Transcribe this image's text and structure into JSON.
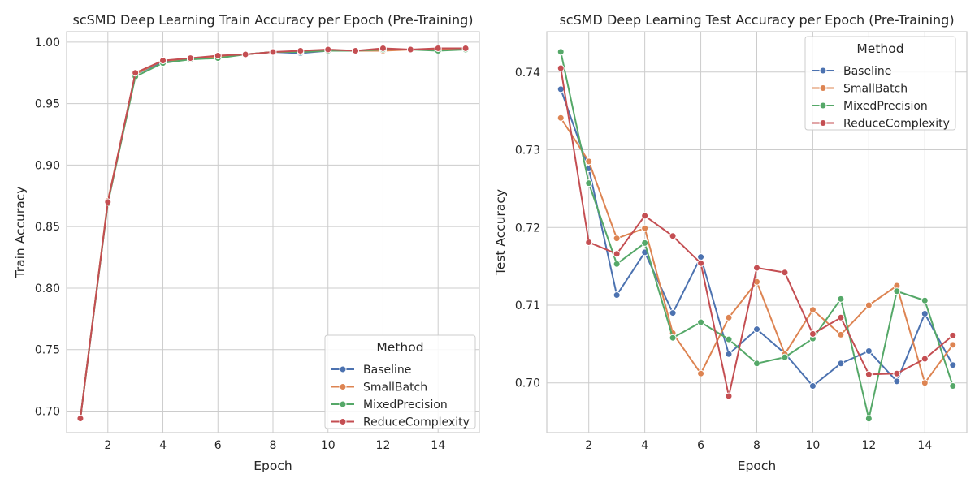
{
  "chart_data": [
    {
      "type": "line",
      "title": "scSMD Deep Learning Train Accuracy per Epoch (Pre-Training)",
      "xlabel": "Epoch",
      "ylabel": "Train Accuracy",
      "x": [
        1,
        2,
        3,
        4,
        5,
        6,
        7,
        8,
        9,
        10,
        11,
        12,
        13,
        14,
        15
      ],
      "xlim": [
        0.5,
        15.5
      ],
      "ylim": [
        0.6825,
        1.0085
      ],
      "xticks": [
        2,
        4,
        6,
        8,
        10,
        12,
        14
      ],
      "xtick_labels": [
        "2",
        "4",
        "6",
        "8",
        "10",
        "12",
        "14"
      ],
      "yticks": [
        0.7,
        0.75,
        0.8,
        0.85,
        0.9,
        0.95,
        1.0
      ],
      "ytick_labels": [
        "0.70",
        "0.75",
        "0.80",
        "0.85",
        "0.90",
        "0.95",
        "1.00"
      ],
      "grid": true,
      "legend": {
        "title": "Method",
        "position": "lower-right"
      },
      "series": [
        {
          "name": "Baseline",
          "color": "#4c72b0",
          "values": [
            0.694,
            0.87,
            0.974,
            0.984,
            0.987,
            0.988,
            0.99,
            0.992,
            0.991,
            0.993,
            0.993,
            0.994,
            0.994,
            0.994,
            0.995
          ]
        },
        {
          "name": "SmallBatch",
          "color": "#dd8452",
          "values": [
            0.694,
            0.871,
            0.974,
            0.985,
            0.986,
            0.988,
            0.99,
            0.992,
            0.992,
            0.993,
            0.993,
            0.993,
            0.994,
            0.994,
            0.994
          ]
        },
        {
          "name": "MixedPrecision",
          "color": "#55a868",
          "values": [
            0.694,
            0.869,
            0.972,
            0.983,
            0.986,
            0.987,
            0.99,
            0.992,
            0.992,
            0.993,
            0.993,
            0.994,
            0.994,
            0.993,
            0.994
          ]
        },
        {
          "name": "ReduceComplexity",
          "color": "#c44e52",
          "values": [
            0.694,
            0.87,
            0.975,
            0.985,
            0.987,
            0.989,
            0.99,
            0.992,
            0.993,
            0.994,
            0.993,
            0.995,
            0.994,
            0.995,
            0.995
          ]
        }
      ]
    },
    {
      "type": "line",
      "title": "scSMD Deep Learning Test Accuracy per Epoch (Pre-Training)",
      "xlabel": "Epoch",
      "ylabel": "Test Accuracy",
      "x": [
        1,
        2,
        3,
        4,
        5,
        6,
        7,
        8,
        9,
        10,
        11,
        12,
        13,
        14,
        15
      ],
      "xlim": [
        0.5,
        15.5
      ],
      "ylim": [
        0.6936,
        0.7452
      ],
      "xticks": [
        2,
        4,
        6,
        8,
        10,
        12,
        14
      ],
      "xtick_labels": [
        "2",
        "4",
        "6",
        "8",
        "10",
        "12",
        "14"
      ],
      "yticks": [
        0.7,
        0.71,
        0.72,
        0.73,
        0.74
      ],
      "ytick_labels": [
        "0.70",
        "0.71",
        "0.72",
        "0.73",
        "0.74"
      ],
      "grid": true,
      "legend": {
        "title": "Method",
        "position": "upper-right"
      },
      "series": [
        {
          "name": "Baseline",
          "color": "#4c72b0",
          "values": [
            0.7378,
            0.7276,
            0.7113,
            0.7168,
            0.709,
            0.7162,
            0.7037,
            0.7069,
            0.7038,
            0.6996,
            0.7025,
            0.7041,
            0.7002,
            0.7089,
            0.7023
          ]
        },
        {
          "name": "SmallBatch",
          "color": "#dd8452",
          "values": [
            0.7341,
            0.7285,
            0.7186,
            0.7199,
            0.7064,
            0.7012,
            0.7084,
            0.713,
            0.7037,
            0.7094,
            0.7062,
            0.71,
            0.7125,
            0.7,
            0.7049
          ]
        },
        {
          "name": "MixedPrecision",
          "color": "#55a868",
          "values": [
            0.7426,
            0.7257,
            0.7153,
            0.718,
            0.7058,
            0.7078,
            0.7056,
            0.7025,
            0.7033,
            0.7057,
            0.7108,
            0.6954,
            0.7118,
            0.7106,
            0.6996
          ]
        },
        {
          "name": "ReduceComplexity",
          "color": "#c44e52",
          "values": [
            0.7405,
            0.7181,
            0.7166,
            0.7215,
            0.7189,
            0.7154,
            0.6983,
            0.7148,
            0.7142,
            0.7063,
            0.7084,
            0.7011,
            0.7012,
            0.7031,
            0.7061
          ]
        }
      ]
    }
  ]
}
